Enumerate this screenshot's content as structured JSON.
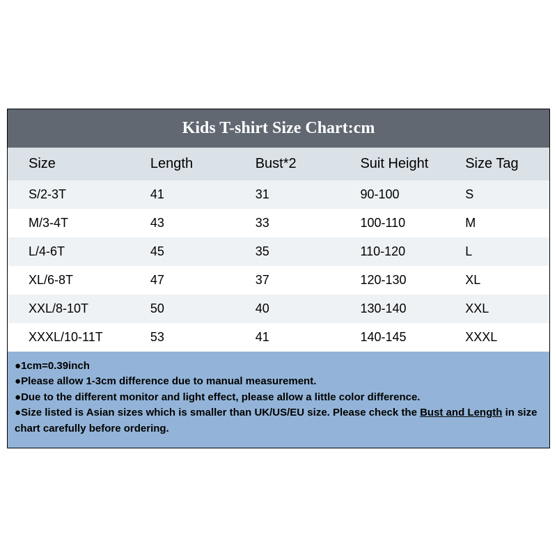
{
  "title": "Kids T-shirt Size Chart:cm",
  "colors": {
    "title_bg": "#616871",
    "title_text": "#ffffff",
    "header_bg": "#dae1e7",
    "row_odd_bg": "#eef2f4",
    "row_even_bg": "#ffffff",
    "notes_bg": "#93b4d8",
    "text": "#000000",
    "border": "#000000"
  },
  "table": {
    "columns": [
      "Size",
      "Length",
      "Bust*2",
      "Suit Height",
      "Size Tag"
    ],
    "rows": [
      [
        "S/2-3T",
        "41",
        "31",
        "90-100",
        "S"
      ],
      [
        "M/3-4T",
        "43",
        "33",
        "100-110",
        "M"
      ],
      [
        "L/4-6T",
        "45",
        "35",
        "110-120",
        "L"
      ],
      [
        "XL/6-8T",
        "47",
        "37",
        "120-130",
        "XL"
      ],
      [
        "XXL/8-10T",
        "50",
        "40",
        "130-140",
        "XXL"
      ],
      [
        "XXXL/10-11T",
        "53",
        "41",
        "140-145",
        "XXXL"
      ]
    ]
  },
  "notes": {
    "n1": "1cm=0.39inch",
    "n2": "Please allow 1-3cm difference due to manual measurement.",
    "n3": "Due to the different monitor and light effect, please allow a little color difference.",
    "n4a": "Size listed is Asian sizes which is smaller than UK/US/EU size. Please check the ",
    "n4u": "Bust and Length",
    "n4b": " in size chart carefully before ordering."
  }
}
